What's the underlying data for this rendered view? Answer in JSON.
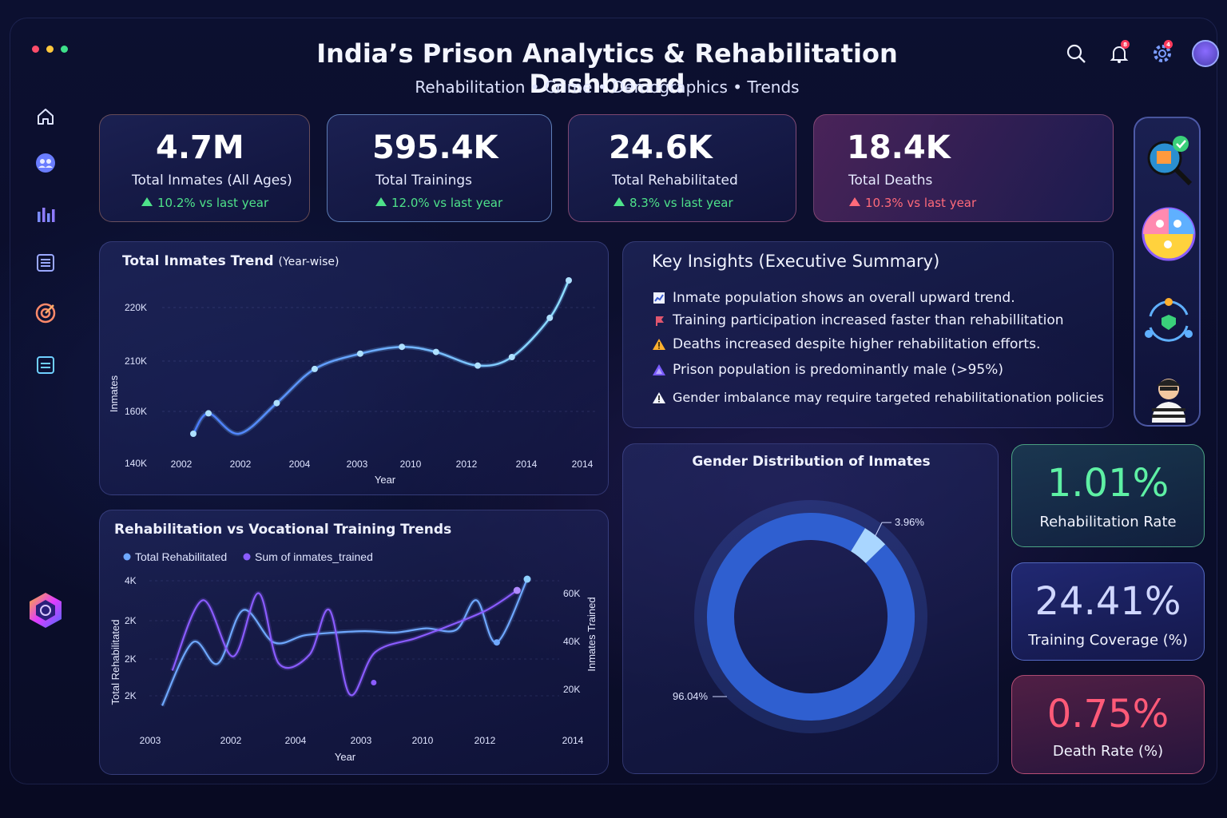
{
  "header": {
    "title": "India’s Prison Analytics & Rehabilitation Dashboard",
    "subtitle": "Rehabilitation • Crime • Demographics • Trends",
    "notif_badge": "8",
    "settings_badge": "4"
  },
  "window_dots": [
    "#ff4d6a",
    "#ffc83d",
    "#3ee08a"
  ],
  "sidebar": [
    {
      "icon": "home-icon"
    },
    {
      "icon": "group-icon"
    },
    {
      "icon": "bar-chart-icon"
    },
    {
      "icon": "list-icon"
    },
    {
      "icon": "target-icon"
    },
    {
      "icon": "document-icon"
    },
    {
      "icon": "logo-hexagon-icon"
    }
  ],
  "kpis": [
    {
      "value": "4.7M",
      "label": "Total Inmates (All Ages)",
      "delta": "10.2% vs last year",
      "trend": "up",
      "color": "#4ee28a"
    },
    {
      "value": "595.4K",
      "label": "Total Trainings",
      "delta": "12.0% vs last year",
      "trend": "up",
      "color": "#4ee28a"
    },
    {
      "value": "24.6K",
      "label": "Total Rehabilitated",
      "delta": "8.3% vs last year",
      "trend": "up",
      "color": "#4ee28a"
    },
    {
      "value": "18.4K",
      "label": "Total Deaths",
      "delta": "10.3% vs last year",
      "trend": "up",
      "color": "#ff6a7a"
    }
  ],
  "insights": {
    "title": "Key Insights (Executive Summary)",
    "items": [
      {
        "icon": "trend-chart-icon",
        "text": "Inmate population shows an overall upward trend."
      },
      {
        "icon": "flag-icon",
        "text": "Training participation increased faster than rehabillitation"
      },
      {
        "icon": "warning-icon",
        "text": "Deaths increased despite higher rehabilitation efforts."
      },
      {
        "icon": "triangle-icon",
        "text": "Prison population is predominantly male (>95%)"
      },
      {
        "icon": "alert-icon",
        "text": "Gender imbalance may require targeted rehabilitationation policies"
      }
    ]
  },
  "rates": [
    {
      "value": "1.01%",
      "label": "Rehabilitation Rate",
      "color": "#5ef0a4"
    },
    {
      "value": "24.41%",
      "label": "Training Coverage (%)",
      "color": "#cfd6ff"
    },
    {
      "value": "0.75%",
      "label": "Death Rate (%)",
      "color": "#ff5a78"
    }
  ],
  "right_icons": [
    "magnifier-check-icon",
    "group-pie-icon",
    "cycle-people-icon",
    "inmate-icon"
  ],
  "chart_data": [
    {
      "type": "line",
      "title": "Total Inmates Trend",
      "subtitle": "(Year-wise)",
      "xlabel": "Year",
      "ylabel": "Inmates",
      "x_tick_labels": [
        "2002",
        "2002",
        "2004",
        "2003",
        "2010",
        "2012",
        "2014",
        "2014"
      ],
      "y_tick_labels": [
        "140K",
        "160K",
        "210K",
        "220K"
      ],
      "ylim": [
        140000,
        240000
      ],
      "points": [
        [
          0.0,
          150
        ],
        [
          0.2,
          162
        ],
        [
          0.6,
          150
        ],
        [
          1.1,
          168
        ],
        [
          1.6,
          188
        ],
        [
          2.2,
          197
        ],
        [
          2.75,
          201
        ],
        [
          3.2,
          198
        ],
        [
          3.75,
          190
        ],
        [
          4.2,
          195
        ],
        [
          4.7,
          218
        ],
        [
          4.95,
          240
        ]
      ]
    },
    {
      "type": "line",
      "title": "Rehabilitation vs Vocational Training Trends",
      "xlabel": "Year",
      "ylabel": "Total Rehabilitated",
      "y2label": "Inmates Trained",
      "x_tick_labels": [
        "2003",
        "2002",
        "2004",
        "2003",
        "2010",
        "2012",
        "2014"
      ],
      "y_tick_labels": [
        "2K",
        "2K",
        "2K",
        "4K"
      ],
      "y2_tick_labels": [
        "20K",
        "40K",
        "60K"
      ],
      "series": [
        {
          "name": "Total Rehabilitated",
          "color": "#6fa8ff",
          "values": [
            [
              0.0,
              0.1
            ],
            [
              0.3,
              0.55
            ],
            [
              0.55,
              0.4
            ],
            [
              0.8,
              0.78
            ],
            [
              1.1,
              0.55
            ],
            [
              1.4,
              0.6
            ],
            [
              1.7,
              0.62
            ],
            [
              2.0,
              0.63
            ],
            [
              2.3,
              0.62
            ],
            [
              2.6,
              0.65
            ],
            [
              2.9,
              0.64
            ],
            [
              3.1,
              0.85
            ],
            [
              3.3,
              0.55
            ],
            [
              3.6,
              1.0
            ]
          ]
        },
        {
          "name": "Sum of inmates_trained",
          "color": "#8a5cff",
          "values": [
            [
              0.1,
              0.35
            ],
            [
              0.4,
              0.85
            ],
            [
              0.7,
              0.45
            ],
            [
              0.95,
              0.9
            ],
            [
              1.15,
              0.4
            ],
            [
              1.45,
              0.46
            ],
            [
              1.65,
              0.78
            ],
            [
              1.85,
              0.18
            ],
            [
              2.1,
              0.48
            ],
            [
              2.5,
              0.58
            ],
            [
              2.8,
              0.66
            ],
            [
              3.2,
              0.78
            ],
            [
              3.5,
              0.92
            ]
          ]
        }
      ]
    },
    {
      "type": "pie",
      "title": "Gender Distribution of Inmates",
      "slices": [
        {
          "label": "96.04%",
          "value": 96.04,
          "color": "#2f5fd0"
        },
        {
          "label": "3.96%",
          "value": 3.96,
          "color": "#a9d6ff"
        }
      ]
    }
  ]
}
